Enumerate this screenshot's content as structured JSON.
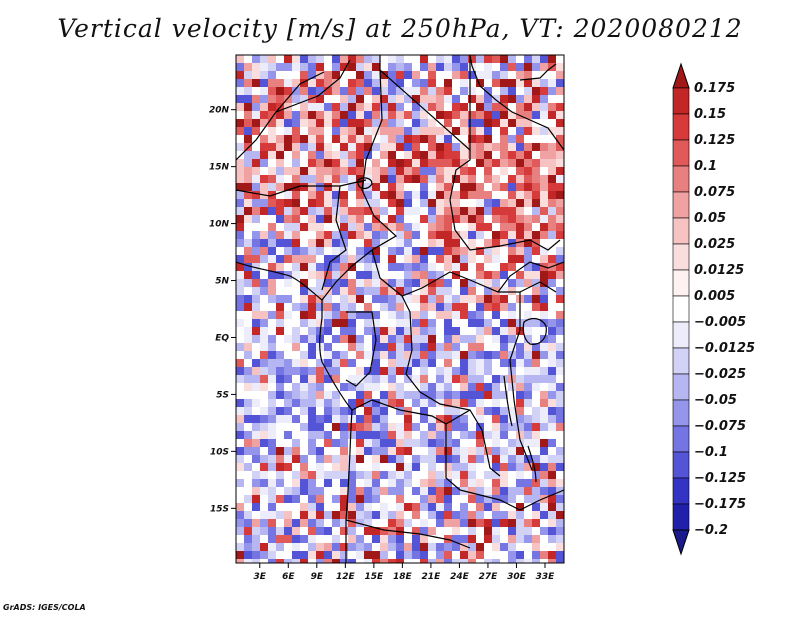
{
  "map": {
    "title": "Vertical velocity [m/s] at 250hPa, VT: 2020080212",
    "credit": "GrADS: IGES/COLA",
    "variable": "Vertical velocity",
    "units": "m/s",
    "level": "250hPa",
    "valid_time": "2020080212",
    "lat_ticks": [
      "20N",
      "15N",
      "10N",
      "5N",
      "EQ",
      "5S",
      "10S",
      "15S"
    ],
    "lat_values": [
      20,
      15,
      10,
      5,
      0,
      -5,
      -10,
      -15
    ],
    "lon_ticks": [
      "3E",
      "6E",
      "9E",
      "12E",
      "15E",
      "18E",
      "21E",
      "24E",
      "27E",
      "30E",
      "33E"
    ],
    "lon_values": [
      3,
      6,
      9,
      12,
      15,
      18,
      21,
      24,
      27,
      30,
      33
    ],
    "lat_range": [
      -19.8,
      24.8
    ],
    "lon_range": [
      0.5,
      35.0
    ]
  },
  "colorbar": {
    "levels": [
      "0.175",
      "0.15",
      "0.125",
      "0.1",
      "0.075",
      "0.05",
      "0.025",
      "0.0125",
      "0.005",
      "−0.005",
      "−0.0125",
      "−0.025",
      "−0.05",
      "−0.075",
      "−0.1",
      "−0.125",
      "−0.175",
      "−0.2"
    ],
    "colors": [
      "#a01818",
      "#c22626",
      "#d63a3a",
      "#e05a5a",
      "#e98080",
      "#f0a2a2",
      "#f6c2c2",
      "#fadede",
      "#fdf1f1",
      "#ffffff",
      "#ececfb",
      "#d2d2f7",
      "#b6b6f2",
      "#9595eb",
      "#7474e2",
      "#5454d6",
      "#3434c4",
      "#2020aa",
      "#1a1a8a"
    ]
  },
  "colors": {
    "positive_strong": "#c22626",
    "negative_strong": "#3434c4",
    "neutral": "#ffffff",
    "borders": "#000000"
  }
}
